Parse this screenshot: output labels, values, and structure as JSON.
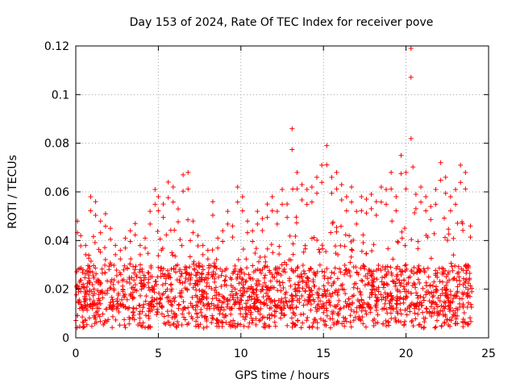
{
  "chart_data": {
    "type": "scatter",
    "title": "Day 153 of 2024, Rate Of TEC Index for receiver pove",
    "xlabel": "GPS time / hours",
    "ylabel": "ROTI / TECUs",
    "xlim": [
      0,
      25
    ],
    "ylim": [
      0,
      0.12
    ],
    "xticks": [
      0,
      5,
      10,
      15,
      20,
      25
    ],
    "xtick_labels": [
      "0",
      "5",
      "10",
      "15",
      "20",
      "25"
    ],
    "yticks": [
      0,
      0.02,
      0.04,
      0.06,
      0.08,
      0.1,
      0.12
    ],
    "ytick_labels": [
      "0",
      "0.02",
      "0.04",
      "0.06",
      "0.08",
      "0.1",
      "0.12"
    ],
    "grid": true,
    "marker": "+",
    "color": "#ff0000",
    "series": [
      {
        "name": "ROTI",
        "x": [
          0.1,
          0.3,
          0.6,
          0.9,
          1.2,
          1.5,
          1.8,
          2.1,
          2.4,
          2.7,
          3.0,
          3.3,
          3.6,
          3.9,
          4.2,
          4.5,
          4.8,
          5.0,
          5.3,
          5.6,
          5.9,
          6.2,
          6.5,
          6.8,
          7.1,
          7.4,
          7.7,
          8.0,
          8.3,
          8.6,
          8.9,
          9.2,
          9.5,
          9.8,
          10.1,
          10.4,
          10.7,
          11.0,
          11.3,
          11.6,
          11.9,
          12.2,
          12.5,
          12.8,
          13.1,
          13.4,
          13.7,
          14.0,
          14.3,
          14.6,
          14.9,
          15.2,
          15.5,
          15.8,
          16.1,
          16.4,
          16.7,
          17.0,
          17.3,
          17.6,
          17.9,
          18.2,
          18.5,
          18.8,
          19.1,
          19.4,
          19.7,
          20.0,
          20.3,
          20.6,
          20.9,
          21.2,
          21.5,
          21.8,
          22.1,
          22.4,
          22.7,
          23.0,
          23.3,
          23.6,
          23.9
        ],
        "y": [
          0.048,
          0.042,
          0.038,
          0.058,
          0.056,
          0.048,
          0.051,
          0.045,
          0.038,
          0.036,
          0.041,
          0.044,
          0.047,
          0.038,
          0.041,
          0.052,
          0.061,
          0.058,
          0.055,
          0.064,
          0.062,
          0.053,
          0.067,
          0.068,
          0.048,
          0.042,
          0.038,
          0.036,
          0.056,
          0.041,
          0.044,
          0.052,
          0.046,
          0.062,
          0.058,
          0.048,
          0.044,
          0.052,
          0.049,
          0.055,
          0.058,
          0.052,
          0.061,
          0.055,
          0.086,
          0.068,
          0.063,
          0.061,
          0.062,
          0.066,
          0.071,
          0.079,
          0.066,
          0.068,
          0.063,
          0.058,
          0.062,
          0.052,
          0.058,
          0.057,
          0.059,
          0.056,
          0.062,
          0.061,
          0.068,
          0.058,
          0.075,
          0.068,
          0.119,
          0.059,
          0.062,
          0.058,
          0.054,
          0.061,
          0.072,
          0.066,
          0.058,
          0.061,
          0.071,
          0.068,
          0.046
        ]
      }
    ],
    "background_band": {
      "base_min": 0.004,
      "base_typical": 0.012,
      "dense_upper": 0.03
    }
  }
}
